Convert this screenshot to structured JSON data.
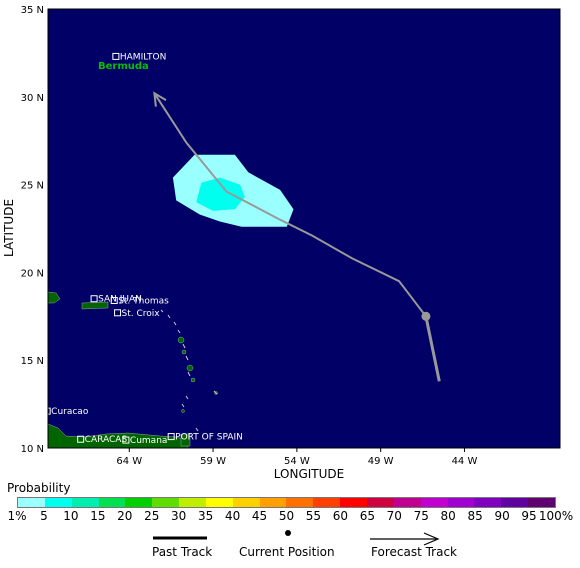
{
  "map": {
    "background_color": "#000066",
    "land_color": "#006400",
    "track_color": "#999999",
    "y_axis_title": "LATITUDE",
    "x_axis_title": "LONGITUDE",
    "lat_ticks": [
      "35 N",
      "30 N",
      "25 N",
      "20 N",
      "15 N",
      "10 N"
    ],
    "lon_ticks": [
      "64 W",
      "59 W",
      "54 W",
      "49 W",
      "44 W"
    ],
    "places": [
      {
        "name": "HAMILTON",
        "lon": -64.8,
        "lat": 32.3
      },
      {
        "name": "SAN JUAN",
        "lon": -66.1,
        "lat": 18.5
      },
      {
        "name": "St. Thomas",
        "lon": -64.9,
        "lat": 18.4
      },
      {
        "name": "St. Croix",
        "lon": -64.7,
        "lat": 17.7
      },
      {
        "name": "Curacao",
        "lon": -68.9,
        "lat": 12.1
      },
      {
        "name": "CARACAS",
        "lon": -66.9,
        "lat": 10.5
      },
      {
        "name": "Cumana",
        "lon": -64.2,
        "lat": 10.45
      },
      {
        "name": "PORT OF SPAIN",
        "lon": -61.5,
        "lat": 10.65
      }
    ],
    "region_label": "Bermuda",
    "past_track": [
      [
        -45.5,
        13.8
      ],
      [
        -46.3,
        17.5
      ]
    ],
    "current_position": [
      -46.3,
      17.5
    ],
    "forecast_track": [
      [
        -46.3,
        17.5
      ],
      [
        -47.9,
        19.5
      ],
      [
        -50.7,
        20.8
      ],
      [
        -53.1,
        22.1
      ],
      [
        -55.0,
        23.0
      ],
      [
        -58.2,
        24.6
      ],
      [
        -60.6,
        27.4
      ],
      [
        -62.5,
        30.2
      ]
    ],
    "probability_areas": [
      {
        "level": "5%",
        "polygon": [
          [
            -60.1,
            26.7
          ],
          [
            -57.7,
            26.7
          ],
          [
            -56.9,
            25.7
          ],
          [
            -55.0,
            24.7
          ],
          [
            -54.2,
            23.6
          ],
          [
            -54.6,
            22.6
          ],
          [
            -57.3,
            22.6
          ],
          [
            -58.6,
            22.9
          ],
          [
            -59.8,
            23.3
          ],
          [
            -61.2,
            24.1
          ],
          [
            -61.4,
            25.4
          ]
        ]
      },
      {
        "level": "10%",
        "polygon": [
          [
            -59.7,
            25.1
          ],
          [
            -58.6,
            25.4
          ],
          [
            -57.4,
            25.0
          ],
          [
            -57.1,
            24.3
          ],
          [
            -57.7,
            23.6
          ],
          [
            -59.0,
            23.5
          ],
          [
            -60.0,
            24.0
          ]
        ]
      }
    ]
  },
  "legend": {
    "title": "Probability",
    "colors": [
      "#9affff",
      "#00ffef",
      "#00efb0",
      "#00e050",
      "#00d000",
      "#60dd00",
      "#c0ee00",
      "#ffff00",
      "#ffd000",
      "#ffa000",
      "#ff7000",
      "#ff4000",
      "#ff0000",
      "#d00040",
      "#c00090",
      "#c000d0",
      "#a000d0",
      "#8000c0",
      "#6000a0",
      "#600070"
    ],
    "labels": [
      "1%",
      "5",
      "10",
      "15",
      "20",
      "25",
      "30",
      "35",
      "40",
      "45",
      "50",
      "55",
      "60",
      "65",
      "70",
      "75",
      "80",
      "85",
      "90",
      "95",
      "100%"
    ]
  },
  "key": {
    "past_track": "Past Track",
    "current_position": "Current Position",
    "forecast_track": "Forecast Track"
  }
}
